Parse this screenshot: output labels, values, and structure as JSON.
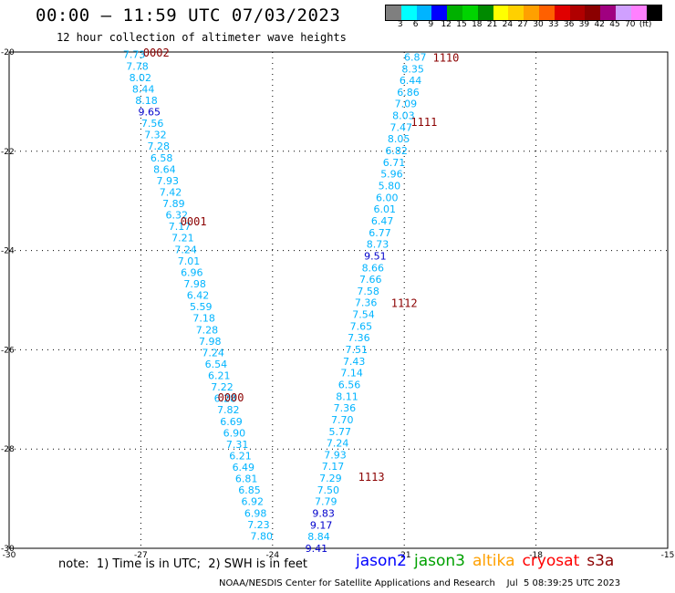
{
  "header": {
    "title": "00:00 – 11:59 UTC 07/03/2023",
    "subtitle": "12 hour collection of altimeter wave heights"
  },
  "scale": {
    "unit": "(ft)",
    "labels": [
      "3",
      "6",
      "9",
      "12",
      "15",
      "18",
      "21",
      "24",
      "27",
      "30",
      "33",
      "36",
      "39",
      "42",
      "45",
      "70"
    ],
    "colors": [
      "#7f7f7f",
      "#00ffff",
      "#00b4ff",
      "#0000ff",
      "#00b000",
      "#00d400",
      "#008a00",
      "#ffff00",
      "#ffd000",
      "#ffa000",
      "#ff6000",
      "#e00000",
      "#b00000",
      "#8b0000",
      "#a00080",
      "#d0a0ff",
      "#ff80ff",
      "#000000"
    ]
  },
  "chart_data": {
    "type": "scatter",
    "xlim": [
      -30,
      -15
    ],
    "ylim": [
      -30,
      -20
    ],
    "x_ticks": [
      "-30",
      "-27",
      "-24",
      "-21",
      "-18",
      "-15"
    ],
    "y_ticks": [
      "-20",
      "-22",
      "-24",
      "-26",
      "-28",
      "-30"
    ],
    "value_colors": {
      "low": "#00b4ff",
      "high": "#0000cc"
    },
    "pass_label_color": "#8b0000",
    "passes": [
      {
        "label": "0002",
        "label_point": [
          -26.65,
          -20.0
        ],
        "start": [
          -27.15,
          -20.05
        ],
        "end": [
          -24.25,
          -29.75
        ],
        "values": [
          "7.73",
          "7.78",
          "8.02",
          "8.44",
          "8.18",
          "9.65",
          "7.56",
          "7.32",
          "7.28",
          "6.58",
          "8.64",
          "7.93",
          "7.42",
          "7.89",
          "6.32",
          "7.17",
          "7.21",
          "7.24",
          "7.01",
          "6.96",
          "7.98",
          "6.42",
          "5.59",
          "7.18",
          "7.28",
          "7.98",
          "7.24",
          "6.54",
          "6.21",
          "7.22",
          "6.28",
          "7.82",
          "6.69",
          "6.90",
          "7.31",
          "6.21",
          "6.49",
          "6.81",
          "6.85",
          "6.92",
          "6.98",
          "7.23",
          "7.80"
        ]
      },
      {
        "label": "0001",
        "label_point": [
          -25.8,
          -23.4
        ],
        "label_only": true
      },
      {
        "label": "0000",
        "label_point": [
          -24.95,
          -26.95
        ],
        "label_only": true
      },
      {
        "label": "1110",
        "label_point": [
          -20.05,
          -20.1
        ],
        "start": [
          -20.75,
          -20.1
        ],
        "end": [
          -23.0,
          -30.0
        ],
        "values": [
          "6.87",
          "8.35",
          "6.44",
          "6.86",
          "7.09",
          "8.03",
          "7.47",
          "8.05",
          "6.82",
          "6.71",
          "5.96",
          "5.80",
          "6.00",
          "6.01",
          "6.47",
          "6.77",
          "8.73",
          "9.51",
          "8.66",
          "7.66",
          "7.58",
          "7.36",
          "7.54",
          "7.65",
          "7.36",
          "7.51",
          "7.43",
          "7.14",
          "6.56",
          "8.11",
          "7.36",
          "7.70",
          "5.77",
          "7.24",
          "7.93",
          "7.17",
          "7.29",
          "7.50",
          "7.79",
          "9.83",
          "9.17",
          "8.84",
          "9.41"
        ]
      },
      {
        "label": "1111",
        "label_point": [
          -20.55,
          -21.4
        ],
        "label_only": true
      },
      {
        "label": "1112",
        "label_point": [
          -21.0,
          -25.05
        ],
        "label_only": true
      },
      {
        "label": "1113",
        "label_point": [
          -21.75,
          -28.55
        ],
        "label_only": true
      }
    ]
  },
  "note": "note:  1) Time is in UTC;  2) SWH is in feet",
  "legend": {
    "items": [
      {
        "name": "jason2",
        "color": "#0000ff"
      },
      {
        "name": "jason3",
        "color": "#00a000"
      },
      {
        "name": "altika",
        "color": "#ffa000"
      },
      {
        "name": "cryosat",
        "color": "#ff0000"
      },
      {
        "name": "s3a",
        "color": "#8b0000"
      }
    ]
  },
  "footer": "NOAA/NESDIS Center for Satellite Applications and Research    Jul  5 08:39:25 UTC 2023"
}
